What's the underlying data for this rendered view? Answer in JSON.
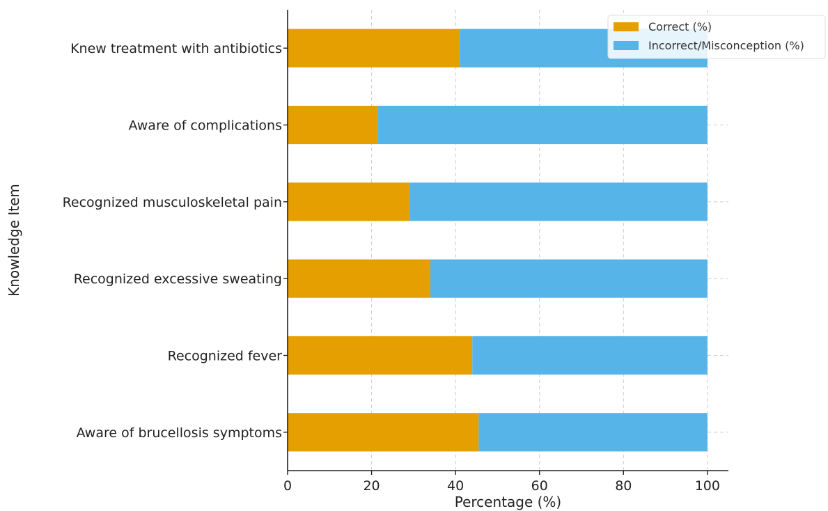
{
  "chart_data": {
    "type": "bar",
    "orientation": "horizontal",
    "stacked": true,
    "title": "",
    "xlabel": "Percentage (%)",
    "ylabel": "Knowledge Item",
    "xlim": [
      0,
      105
    ],
    "xticks": [
      0,
      20,
      40,
      60,
      80,
      100
    ],
    "grid": true,
    "legend_position": "top-right",
    "categories": [
      "Aware of brucellosis symptoms",
      "Recognized fever",
      "Recognized excessive sweating",
      "Recognized musculoskeletal pain",
      "Aware of complications",
      "Knew treatment with antibiotics"
    ],
    "series": [
      {
        "name": "Correct (%)",
        "color": "#E69F00",
        "values": [
          45.5,
          44,
          34,
          29,
          21.5,
          41
        ]
      },
      {
        "name": "Incorrect/Misconception (%)",
        "color": "#56B4E9",
        "values": [
          54.5,
          56,
          66,
          71,
          78.5,
          59
        ]
      }
    ]
  }
}
